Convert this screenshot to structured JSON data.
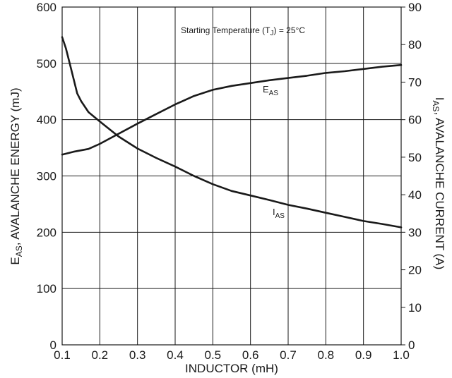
{
  "chart_data": {
    "type": "line",
    "xlabel": "INDUCTOR (mH)",
    "ylabel_left": {
      "main": "E",
      "sub": "AS",
      "rest": ", AVALANCHE ENERGY (mJ)"
    },
    "ylabel_right": {
      "main": "I",
      "sub": "AS",
      "rest": ", AVALANCHE CURRENT (A)"
    },
    "annotation": {
      "pre": "Starting Temperature (T",
      "sub": "J",
      "post": ") = 25°C"
    },
    "xlim": [
      0.1,
      1.0
    ],
    "ylim_left": [
      0,
      600
    ],
    "ylim_right": [
      0,
      90
    ],
    "x_ticks": [
      "0.1",
      "0.2",
      "0.3",
      "0.4",
      "0.5",
      "0.6",
      "0.7",
      "0.8",
      "0.9",
      "1.0"
    ],
    "y_left_ticks": [
      "0",
      "100",
      "200",
      "300",
      "400",
      "500",
      "600"
    ],
    "y_right_ticks": [
      "0",
      "10",
      "20",
      "30",
      "40",
      "50",
      "60",
      "70",
      "80",
      "90"
    ],
    "grid": true,
    "series": [
      {
        "name": "EAS",
        "label_main": "E",
        "label_sub": "AS",
        "axis": "left",
        "x": [
          0.1,
          0.13,
          0.17,
          0.2,
          0.25,
          0.3,
          0.35,
          0.4,
          0.45,
          0.5,
          0.55,
          0.6,
          0.65,
          0.7,
          0.75,
          0.8,
          0.85,
          0.9,
          0.95,
          1.0
        ],
        "y": [
          338,
          343,
          348,
          357,
          375,
          393,
          410,
          427,
          442,
          453,
          460,
          465,
          470,
          474,
          478,
          483,
          486,
          490,
          494,
          497
        ]
      },
      {
        "name": "IAS",
        "label_main": "I",
        "label_sub": "AS",
        "axis": "right",
        "x": [
          0.1,
          0.11,
          0.12,
          0.13,
          0.14,
          0.15,
          0.17,
          0.2,
          0.25,
          0.3,
          0.35,
          0.4,
          0.45,
          0.5,
          0.55,
          0.6,
          0.65,
          0.7,
          0.75,
          0.8,
          0.85,
          0.9,
          0.95,
          1.0
        ],
        "y": [
          82,
          79,
          75,
          71,
          67,
          65,
          62,
          59.5,
          55.5,
          52.3,
          49.8,
          47.5,
          45,
          42.8,
          41,
          39.8,
          38.6,
          37.3,
          36.3,
          35.2,
          34.1,
          33,
          32.2,
          31.3
        ]
      }
    ]
  }
}
